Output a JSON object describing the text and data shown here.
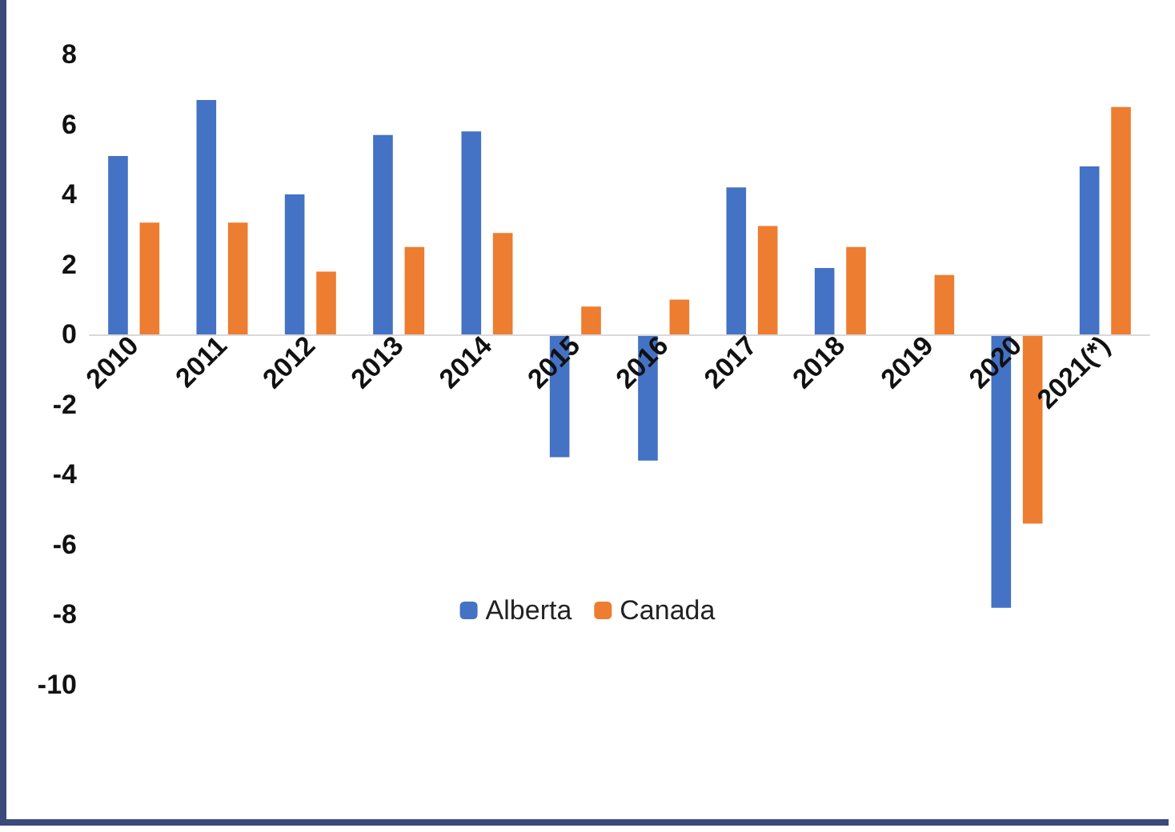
{
  "chart_data": {
    "type": "bar",
    "categories": [
      "2010",
      "2011",
      "2012",
      "2013",
      "2014",
      "2015",
      "2016",
      "2017",
      "2018",
      "2019",
      "2020",
      "2021(*)"
    ],
    "series": [
      {
        "name": "Alberta",
        "color": "#4472c4",
        "values": [
          5.1,
          6.7,
          4.0,
          5.7,
          5.8,
          -3.5,
          -3.6,
          4.2,
          1.9,
          0,
          -7.8,
          4.8
        ]
      },
      {
        "name": "Canada",
        "color": "#ed7d31",
        "values": [
          3.2,
          3.2,
          1.8,
          2.5,
          2.9,
          0.8,
          1.0,
          3.1,
          2.5,
          1.7,
          -5.4,
          6.5
        ]
      }
    ],
    "ylim": [
      -10,
      8
    ],
    "yticks": [
      -10,
      -8,
      -6,
      -4,
      -2,
      0,
      2,
      4,
      6,
      8
    ],
    "grid": false,
    "legend": "bottom"
  }
}
